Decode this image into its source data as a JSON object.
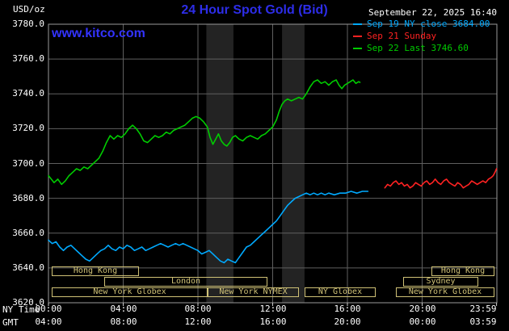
{
  "header": {
    "units": "USD/oz",
    "title": "24 Hour Spot Gold (Bid)",
    "datetime": "September 22, 2025 16:40",
    "watermark": "www.kitco.com"
  },
  "legend": [
    {
      "label": "Sep 19 NY close 3684.00",
      "color": "#00aaff"
    },
    {
      "label": "Sep 21 Sunday",
      "color": "#ff2222"
    },
    {
      "label": "Sep 22 Last 3746.60",
      "color": "#00cc00"
    }
  ],
  "axes": {
    "y_ticks": [
      "3780.0",
      "3760.0",
      "3740.0",
      "3720.0",
      "3700.0",
      "3680.0",
      "3660.0",
      "3640.0",
      "3620.0"
    ],
    "x_label_left": "NY Time",
    "x_ticks_ny": [
      "00:00",
      "04:00",
      "08:00",
      "12:00",
      "16:00",
      "20:00",
      "23:59"
    ],
    "x_label_gmt": "GMT",
    "x_ticks_gmt": [
      "04:00",
      "08:00",
      "12:00",
      "16:00",
      "20:00",
      "00:00",
      "03:59"
    ]
  },
  "sessions": [
    {
      "label": "Hong Kong",
      "row": 1,
      "start": 0.17,
      "end": 4.84
    },
    {
      "label": "Hong Kong",
      "row": 1,
      "start": 20.5,
      "end": 23.87
    },
    {
      "label": "London",
      "row": 2,
      "start": 2.98,
      "end": 11.72
    },
    {
      "label": "Sydney",
      "row": 2,
      "start": 19.0,
      "end": 23.0
    },
    {
      "label": "New York Globex",
      "row": 3,
      "start": 0.17,
      "end": 8.5
    },
    {
      "label": "New York NYMEX",
      "row": 3,
      "start": 8.5,
      "end": 13.4
    },
    {
      "label": "NY Globex",
      "row": 3,
      "start": 13.7,
      "end": 17.5
    },
    {
      "label": "New York Globex",
      "row": 3,
      "start": 18.6,
      "end": 23.87
    }
  ],
  "colors": {
    "background": "#000000",
    "title_blue": "#2d2de8",
    "link_blue": "#3333ff",
    "text_white": "#ffffff",
    "grid": "#5f5f5f",
    "border": "#9a9a9a",
    "tick": "#cccccc",
    "band": "#232323",
    "session": "#cfc176"
  },
  "chart_data": {
    "type": "line",
    "title": "24 Hour Spot Gold (Bid)",
    "xlabel": "NY Time (top) / GMT (bottom)",
    "ylabel": "USD/oz",
    "ylim": [
      3620,
      3780
    ],
    "x_range_hours": [
      0,
      24
    ],
    "y_grid_values": [
      3640,
      3660,
      3680,
      3700,
      3720,
      3740,
      3760
    ],
    "x_grid_hours": [
      4,
      8,
      12,
      16,
      20
    ],
    "x_tick_hours": [
      0,
      4,
      8,
      12,
      16,
      20,
      23.983
    ],
    "grid": true,
    "legend_position": "top-right",
    "shaded_bands_hours": [
      [
        8.45,
        9.9
      ],
      [
        12.5,
        13.7
      ]
    ],
    "series": [
      {
        "name": "Sep 19 NY close",
        "close_value": 3684.0,
        "color": "#00aaff",
        "points": [
          [
            0,
            3656
          ],
          [
            0.2,
            3654
          ],
          [
            0.4,
            3655
          ],
          [
            0.6,
            3652
          ],
          [
            0.8,
            3650
          ],
          [
            1,
            3652
          ],
          [
            1.2,
            3653
          ],
          [
            1.4,
            3651
          ],
          [
            1.6,
            3649
          ],
          [
            1.8,
            3647
          ],
          [
            2,
            3645
          ],
          [
            2.2,
            3644
          ],
          [
            2.4,
            3646
          ],
          [
            2.6,
            3648
          ],
          [
            2.8,
            3650
          ],
          [
            3,
            3651
          ],
          [
            3.2,
            3653
          ],
          [
            3.4,
            3651
          ],
          [
            3.6,
            3650
          ],
          [
            3.8,
            3652
          ],
          [
            4,
            3651
          ],
          [
            4.2,
            3653
          ],
          [
            4.4,
            3652
          ],
          [
            4.6,
            3650
          ],
          [
            4.8,
            3651
          ],
          [
            5,
            3652
          ],
          [
            5.2,
            3650
          ],
          [
            5.4,
            3651
          ],
          [
            5.6,
            3652
          ],
          [
            5.8,
            3653
          ],
          [
            6,
            3654
          ],
          [
            6.2,
            3653
          ],
          [
            6.4,
            3652
          ],
          [
            6.6,
            3653
          ],
          [
            6.8,
            3654
          ],
          [
            7,
            3653
          ],
          [
            7.2,
            3654
          ],
          [
            7.4,
            3653
          ],
          [
            7.6,
            3652
          ],
          [
            7.8,
            3651
          ],
          [
            8,
            3650
          ],
          [
            8.2,
            3648
          ],
          [
            8.4,
            3649
          ],
          [
            8.6,
            3650
          ],
          [
            8.8,
            3648
          ],
          [
            9,
            3646
          ],
          [
            9.2,
            3644
          ],
          [
            9.4,
            3643
          ],
          [
            9.6,
            3645
          ],
          [
            9.8,
            3644
          ],
          [
            10,
            3643
          ],
          [
            10.2,
            3646
          ],
          [
            10.4,
            3649
          ],
          [
            10.6,
            3652
          ],
          [
            10.8,
            3653
          ],
          [
            11,
            3655
          ],
          [
            11.2,
            3657
          ],
          [
            11.4,
            3659
          ],
          [
            11.6,
            3661
          ],
          [
            11.8,
            3663
          ],
          [
            12,
            3665
          ],
          [
            12.2,
            3667
          ],
          [
            12.4,
            3670
          ],
          [
            12.6,
            3673
          ],
          [
            12.8,
            3676
          ],
          [
            13,
            3678
          ],
          [
            13.2,
            3680
          ],
          [
            13.4,
            3681
          ],
          [
            13.6,
            3682
          ],
          [
            13.8,
            3683
          ],
          [
            14,
            3682
          ],
          [
            14.2,
            3683
          ],
          [
            14.4,
            3682
          ],
          [
            14.6,
            3683
          ],
          [
            14.8,
            3682
          ],
          [
            15,
            3683
          ],
          [
            15.3,
            3682
          ],
          [
            15.6,
            3683
          ],
          [
            15.9,
            3683
          ],
          [
            16.2,
            3684
          ],
          [
            16.5,
            3683
          ],
          [
            16.8,
            3684
          ],
          [
            17.1,
            3684
          ]
        ]
      },
      {
        "name": "Sep 21 Sunday",
        "color": "#ff2222",
        "points": [
          [
            18,
            3686
          ],
          [
            18.15,
            3688
          ],
          [
            18.3,
            3687
          ],
          [
            18.45,
            3689
          ],
          [
            18.6,
            3690
          ],
          [
            18.75,
            3688
          ],
          [
            18.9,
            3689
          ],
          [
            19.05,
            3687
          ],
          [
            19.2,
            3688
          ],
          [
            19.35,
            3686
          ],
          [
            19.5,
            3687
          ],
          [
            19.65,
            3689
          ],
          [
            19.8,
            3688
          ],
          [
            19.95,
            3687
          ],
          [
            20.1,
            3689
          ],
          [
            20.25,
            3690
          ],
          [
            20.4,
            3688
          ],
          [
            20.55,
            3689
          ],
          [
            20.7,
            3691
          ],
          [
            20.85,
            3689
          ],
          [
            21,
            3688
          ],
          [
            21.15,
            3690
          ],
          [
            21.3,
            3691
          ],
          [
            21.45,
            3689
          ],
          [
            21.6,
            3688
          ],
          [
            21.75,
            3687
          ],
          [
            21.9,
            3689
          ],
          [
            22.05,
            3688
          ],
          [
            22.2,
            3686
          ],
          [
            22.35,
            3687
          ],
          [
            22.5,
            3688
          ],
          [
            22.65,
            3690
          ],
          [
            22.8,
            3689
          ],
          [
            22.95,
            3688
          ],
          [
            23.1,
            3689
          ],
          [
            23.25,
            3690
          ],
          [
            23.4,
            3689
          ],
          [
            23.55,
            3691
          ],
          [
            23.7,
            3692
          ],
          [
            23.8,
            3693
          ],
          [
            23.9,
            3695
          ],
          [
            23.98,
            3697
          ]
        ]
      },
      {
        "name": "Sep 22 Last",
        "last_value": 3746.6,
        "color": "#00cc00",
        "points": [
          [
            0,
            3693
          ],
          [
            0.15,
            3691
          ],
          [
            0.3,
            3689
          ],
          [
            0.5,
            3691
          ],
          [
            0.7,
            3688
          ],
          [
            0.9,
            3690
          ],
          [
            1.1,
            3693
          ],
          [
            1.3,
            3695
          ],
          [
            1.5,
            3697
          ],
          [
            1.7,
            3696
          ],
          [
            1.9,
            3698
          ],
          [
            2.1,
            3697
          ],
          [
            2.3,
            3699
          ],
          [
            2.5,
            3701
          ],
          [
            2.7,
            3703
          ],
          [
            2.9,
            3707
          ],
          [
            3.1,
            3712
          ],
          [
            3.3,
            3716
          ],
          [
            3.5,
            3714
          ],
          [
            3.7,
            3716
          ],
          [
            3.9,
            3715
          ],
          [
            4.1,
            3717
          ],
          [
            4.3,
            3720
          ],
          [
            4.5,
            3722
          ],
          [
            4.7,
            3720
          ],
          [
            4.9,
            3717
          ],
          [
            5.1,
            3713
          ],
          [
            5.3,
            3712
          ],
          [
            5.5,
            3714
          ],
          [
            5.7,
            3716
          ],
          [
            5.9,
            3715
          ],
          [
            6.1,
            3716
          ],
          [
            6.3,
            3718
          ],
          [
            6.5,
            3717
          ],
          [
            6.7,
            3719
          ],
          [
            6.9,
            3720
          ],
          [
            7.1,
            3721
          ],
          [
            7.3,
            3722
          ],
          [
            7.5,
            3724
          ],
          [
            7.7,
            3726
          ],
          [
            7.9,
            3727
          ],
          [
            8.1,
            3726
          ],
          [
            8.3,
            3724
          ],
          [
            8.5,
            3721
          ],
          [
            8.65,
            3715
          ],
          [
            8.8,
            3711
          ],
          [
            8.95,
            3714
          ],
          [
            9.1,
            3717
          ],
          [
            9.25,
            3713
          ],
          [
            9.4,
            3711
          ],
          [
            9.55,
            3710
          ],
          [
            9.7,
            3712
          ],
          [
            9.85,
            3715
          ],
          [
            10,
            3716
          ],
          [
            10.2,
            3714
          ],
          [
            10.4,
            3713
          ],
          [
            10.6,
            3715
          ],
          [
            10.8,
            3716
          ],
          [
            11,
            3715
          ],
          [
            11.2,
            3714
          ],
          [
            11.4,
            3716
          ],
          [
            11.6,
            3717
          ],
          [
            11.8,
            3719
          ],
          [
            12,
            3721
          ],
          [
            12.2,
            3725
          ],
          [
            12.35,
            3730
          ],
          [
            12.5,
            3734
          ],
          [
            12.65,
            3736
          ],
          [
            12.8,
            3737
          ],
          [
            13,
            3736
          ],
          [
            13.2,
            3737
          ],
          [
            13.4,
            3738
          ],
          [
            13.6,
            3737
          ],
          [
            13.8,
            3740
          ],
          [
            14,
            3744
          ],
          [
            14.2,
            3747
          ],
          [
            14.4,
            3748
          ],
          [
            14.6,
            3746
          ],
          [
            14.8,
            3747
          ],
          [
            15,
            3745
          ],
          [
            15.2,
            3747
          ],
          [
            15.4,
            3748
          ],
          [
            15.55,
            3745
          ],
          [
            15.7,
            3743
          ],
          [
            15.85,
            3745
          ],
          [
            16,
            3746
          ],
          [
            16.15,
            3747
          ],
          [
            16.3,
            3748
          ],
          [
            16.45,
            3746
          ],
          [
            16.6,
            3747
          ],
          [
            16.67,
            3746.6
          ]
        ]
      }
    ]
  }
}
